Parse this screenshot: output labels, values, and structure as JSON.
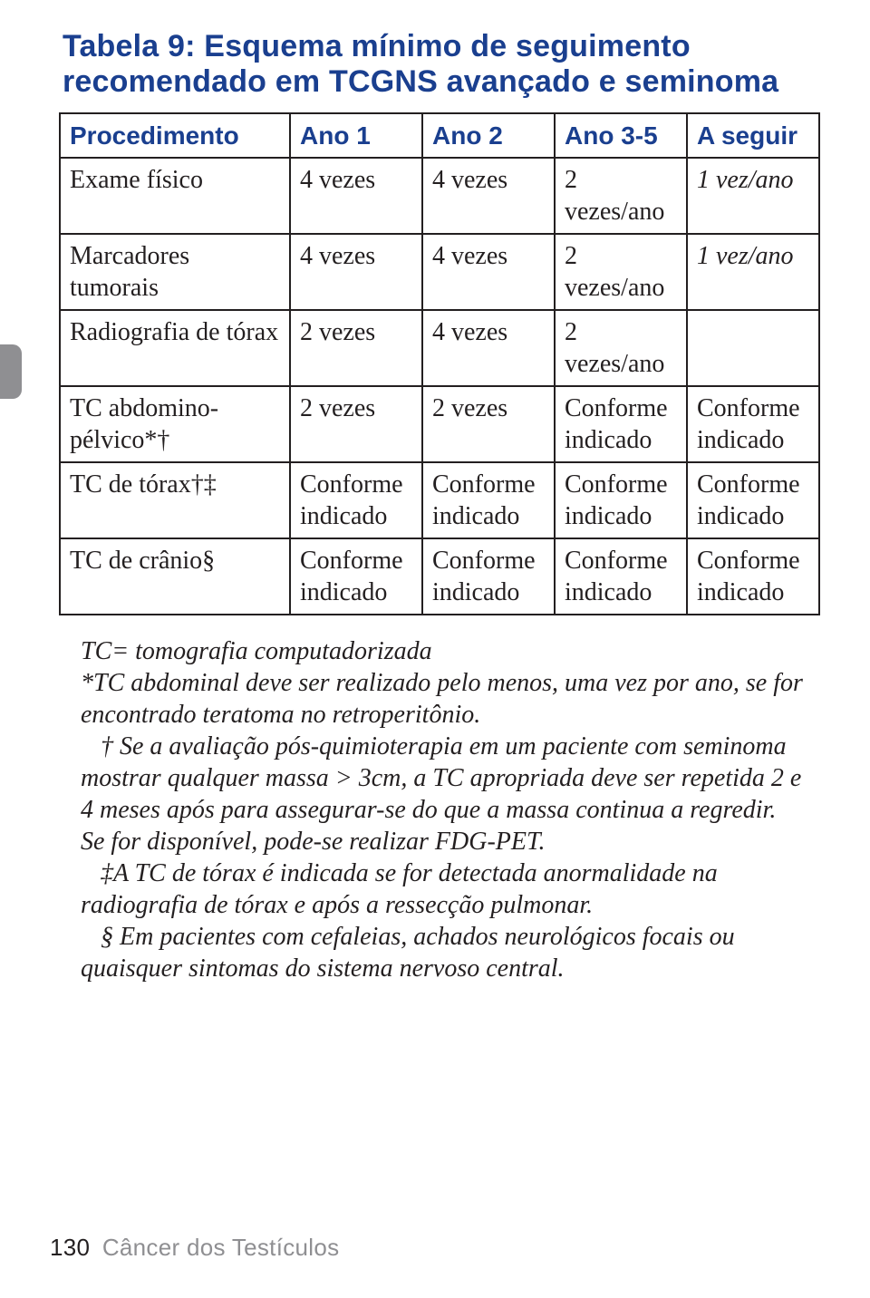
{
  "title": "Tabela 9: Esquema mínimo de seguimento recomendado em TCGNS avançado e seminoma",
  "table": {
    "columns": [
      "Procedimento",
      "Ano 1",
      "Ano 2",
      "Ano 3-5",
      "A seguir"
    ],
    "rows": [
      {
        "label": "Exame físico",
        "c1": "4 vezes",
        "c2": "4 vezes",
        "c3": "2 vezes/ano",
        "c4": "1 vez/ano",
        "c4_italic": true
      },
      {
        "label": "Marcadores tumorais",
        "c1": "4 vezes",
        "c2": "4 vezes",
        "c3": "2 vezes/ano",
        "c4": "1 vez/ano",
        "c4_italic": true
      },
      {
        "label": "Radiografia de tórax",
        "c1": "2 vezes",
        "c2": "4 vezes",
        "c3": "2 vezes/ano",
        "c4": ""
      },
      {
        "label": "TC abdomino-pélvico*†",
        "c1": "2 vezes",
        "c2": "2 vezes",
        "c3": "Conforme indicado",
        "c4": "Conforme indicado"
      },
      {
        "label": "TC de tórax†‡",
        "c1": "Conforme indicado",
        "c2": "Conforme indicado",
        "c3": "Conforme indicado",
        "c4": "Conforme indicado"
      },
      {
        "label": "TC de crânio§",
        "c1": "Conforme indicado",
        "c2": "Conforme indicado",
        "c3": "Conforme indicado",
        "c4": "Conforme indicado"
      }
    ]
  },
  "notes": [
    "TC= tomografia computadorizada",
    "*TC abdominal deve ser realizado pelo menos, uma vez por ano, se for encontrado teratoma no retroperitônio.",
    "† Se a avaliação pós-quimioterapia em um paciente com seminoma mostrar qualquer massa > 3cm, a TC apropriada deve ser repetida 2 e 4 meses após para assegurar-se do que a massa continua a regredir. Se for disponível, pode-se realizar FDG-PET.",
    "‡A TC de tórax é indicada se for detectada anormalidade na radiografia de tórax e após a ressecção pulmonar.",
    "§ Em pacientes com cefaleias, achados neurológicos focais ou quaisquer sintomas do sistema nervoso central."
  ],
  "footer": {
    "page": "130",
    "section": "Câncer dos Testículos"
  },
  "colors": {
    "title": "#1a3f8f",
    "body": "#231f20",
    "side_tab": "#8f8f92",
    "footer_muted": "#8f8f92",
    "border": "#231f20",
    "background": "#ffffff"
  },
  "typography": {
    "title_fontsize": 34,
    "cell_fontsize": 28,
    "notes_fontsize": 28,
    "footer_fontsize": 26
  }
}
